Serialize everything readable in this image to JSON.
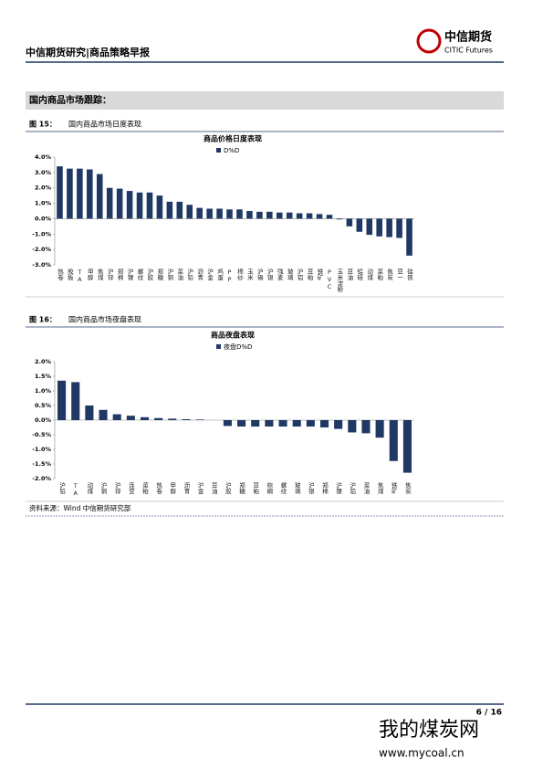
{
  "header": {
    "title": "中信期货研究|商品策略早报",
    "logo_cn": "中信期货",
    "logo_en": "CITIC Futures"
  },
  "section_title": "国内商品市场跟踪：",
  "figures": [
    {
      "number": "图 15：",
      "caption": "国内商品市场日度表现"
    },
    {
      "number": "图 16：",
      "caption": "国内商品市场夜盘表现"
    }
  ],
  "chart_data": [
    {
      "type": "bar",
      "title": "商品价格日度表现",
      "legend": "top",
      "categories": [
        "热卷",
        "胶板",
        "TA",
        "甲醇",
        "焦煤",
        "沪锌",
        "郑棉",
        "沪镍",
        "螺纹",
        "沪胶",
        "郑糖",
        "沪铜",
        "菜油",
        "沪铅",
        "沥青",
        "沪金",
        "鸡蛋",
        "PP",
        "棉纱",
        "玉米",
        "沪锡",
        "沪银",
        "强麦",
        "玻璃",
        "沪铝",
        "豆粕",
        "铁矿",
        "PVC",
        "玉米淀粉",
        "豆油",
        "锰硅",
        "动煤",
        "菜粕",
        "焦炭",
        "豆一",
        "硅铁"
      ],
      "series": [
        {
          "name": "D%D",
          "color": "#1f3864",
          "values": [
            3.4,
            3.25,
            3.25,
            3.2,
            2.9,
            2.0,
            1.95,
            1.8,
            1.7,
            1.7,
            1.5,
            1.1,
            1.1,
            0.9,
            0.7,
            0.65,
            0.65,
            0.6,
            0.6,
            0.5,
            0.45,
            0.45,
            0.4,
            0.4,
            0.35,
            0.35,
            0.3,
            0.25,
            -0.05,
            -0.5,
            -0.85,
            -1.05,
            -1.15,
            -1.2,
            -1.25,
            -2.4
          ]
        }
      ],
      "ylim": [
        -3,
        4
      ],
      "yticks": [
        {
          "value": 4,
          "label": "4.0%"
        },
        {
          "value": 3,
          "label": "3.0%"
        },
        {
          "value": 2,
          "label": "2.0%"
        },
        {
          "value": 1,
          "label": "1.0%"
        },
        {
          "value": 0,
          "label": "0.0%"
        },
        {
          "value": -1,
          "label": "-1.0%"
        },
        {
          "value": -2,
          "label": "-2.0%"
        },
        {
          "value": -3,
          "label": "-3.0%"
        }
      ]
    },
    {
      "type": "bar",
      "title": "商品夜盘表现",
      "legend": "top",
      "categories": [
        "沪铅",
        "TA",
        "动煤",
        "沪铜",
        "沪锌",
        "连豆",
        "菜粕",
        "热卷",
        "甲醇",
        "沥青",
        "沪金",
        "豆油",
        "沪胶",
        "郑糖",
        "豆粕",
        "棕榈",
        "螺纹",
        "玻璃",
        "沪银",
        "郑棉",
        "沪镍",
        "沪铝",
        "菜油",
        "焦煤",
        "铁矿",
        "焦炭"
      ],
      "series": [
        {
          "name": "夜盘D%D",
          "color": "#1f3864",
          "values": [
            1.35,
            1.3,
            0.5,
            0.35,
            0.2,
            0.15,
            0.1,
            0.07,
            0.05,
            0.03,
            0.02,
            0,
            -0.2,
            -0.22,
            -0.22,
            -0.22,
            -0.22,
            -0.22,
            -0.22,
            -0.25,
            -0.3,
            -0.42,
            -0.45,
            -0.6,
            -1.4,
            -1.8
          ]
        }
      ],
      "ylim": [
        -2,
        2
      ],
      "yticks": [
        {
          "value": 2,
          "label": "2.0%"
        },
        {
          "value": 1.5,
          "label": "1.5%"
        },
        {
          "value": 1,
          "label": "1.0%"
        },
        {
          "value": 0.5,
          "label": "0.5%"
        },
        {
          "value": 0,
          "label": "0.0%"
        },
        {
          "value": -0.5,
          "label": "-0.5%"
        },
        {
          "value": -1,
          "label": "-1.0%"
        },
        {
          "value": -1.5,
          "label": "-1.5%"
        },
        {
          "value": -2,
          "label": "-2.0%"
        }
      ]
    }
  ],
  "source": "资料来源：Wind 中信期货研究部",
  "page_number": "6 / 16",
  "watermark": {
    "cn": "我的煤炭网",
    "url": "www.mycoal.cn"
  }
}
